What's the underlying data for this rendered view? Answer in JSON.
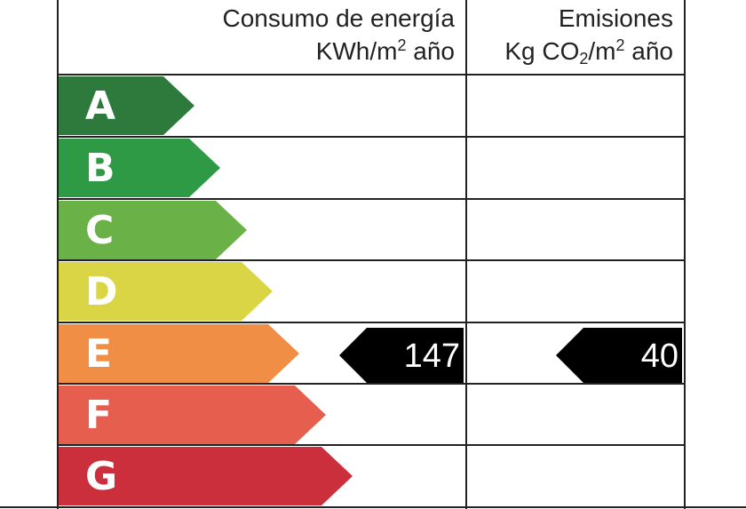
{
  "header": {
    "energy_title": "Consumo de energía",
    "energy_unit_a": "KWh/m",
    "energy_unit_sup": "2",
    "energy_unit_b": " año",
    "emissions_title": "Emisiones",
    "emissions_unit_a": "Kg CO",
    "emissions_unit_sub": "2",
    "emissions_unit_b": "/m",
    "emissions_unit_sup": "2",
    "emissions_unit_c": " año"
  },
  "ratings": [
    {
      "letter": "A",
      "color": "#2e7a3c"
    },
    {
      "letter": "B",
      "color": "#2e9a46"
    },
    {
      "letter": "C",
      "color": "#6ab248"
    },
    {
      "letter": "D",
      "color": "#dad544"
    },
    {
      "letter": "E",
      "color": "#ef8e44"
    },
    {
      "letter": "F",
      "color": "#e65e4e"
    },
    {
      "letter": "G",
      "color": "#cc2f3c"
    }
  ],
  "energy_indicator": {
    "value": "147",
    "rating": "E",
    "color": "#000000"
  },
  "emissions_indicator": {
    "value": "40",
    "rating": "E",
    "color": "#000000"
  }
}
